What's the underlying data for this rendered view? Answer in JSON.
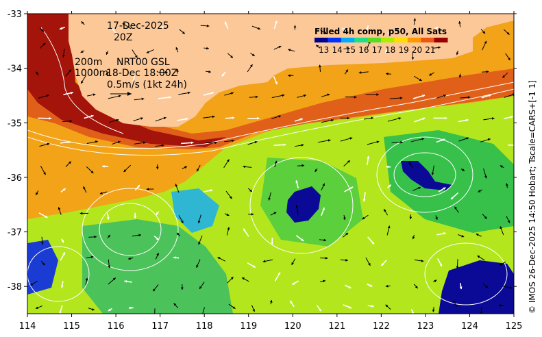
{
  "map": {
    "date_line": "17-Dec-2025",
    "time_line": "20Z",
    "depth_top": "200m",
    "depth_bottom": "1000m",
    "product_label": "NRT00 GSL",
    "alt_time": "18-Dec 18:00Z",
    "scale_label": "0.5m/s (1kt 24h)",
    "credit": "© IMOS 26-Dec-2025 14:50 Hobart; Tscale=CARS+[-1 1]",
    "lon_range": [
      114,
      125
    ],
    "lat_range": [
      -38.5,
      -33
    ],
    "lon_ticks": [
      "114",
      "115",
      "116",
      "117",
      "118",
      "119",
      "120",
      "121",
      "122",
      "123",
      "124",
      "125"
    ],
    "lat_ticks": [
      "-33",
      "-34",
      "-35",
      "-36",
      "-37",
      "-38"
    ],
    "land_color": "#fcc898",
    "vector_color_black": "#000000",
    "vector_color_white": "#ffffff"
  },
  "colorbar": {
    "title": "Filled 4h comp, p50, All Sats",
    "labels": [
      "13",
      "14",
      "15",
      "16",
      "17",
      "18",
      "19",
      "20",
      "21"
    ],
    "colors": [
      "#00008f",
      "#0033ff",
      "#00aaff",
      "#22dd88",
      "#55dd22",
      "#aaee00",
      "#ffdd00",
      "#ff9900",
      "#ee5511",
      "#990000"
    ]
  }
}
